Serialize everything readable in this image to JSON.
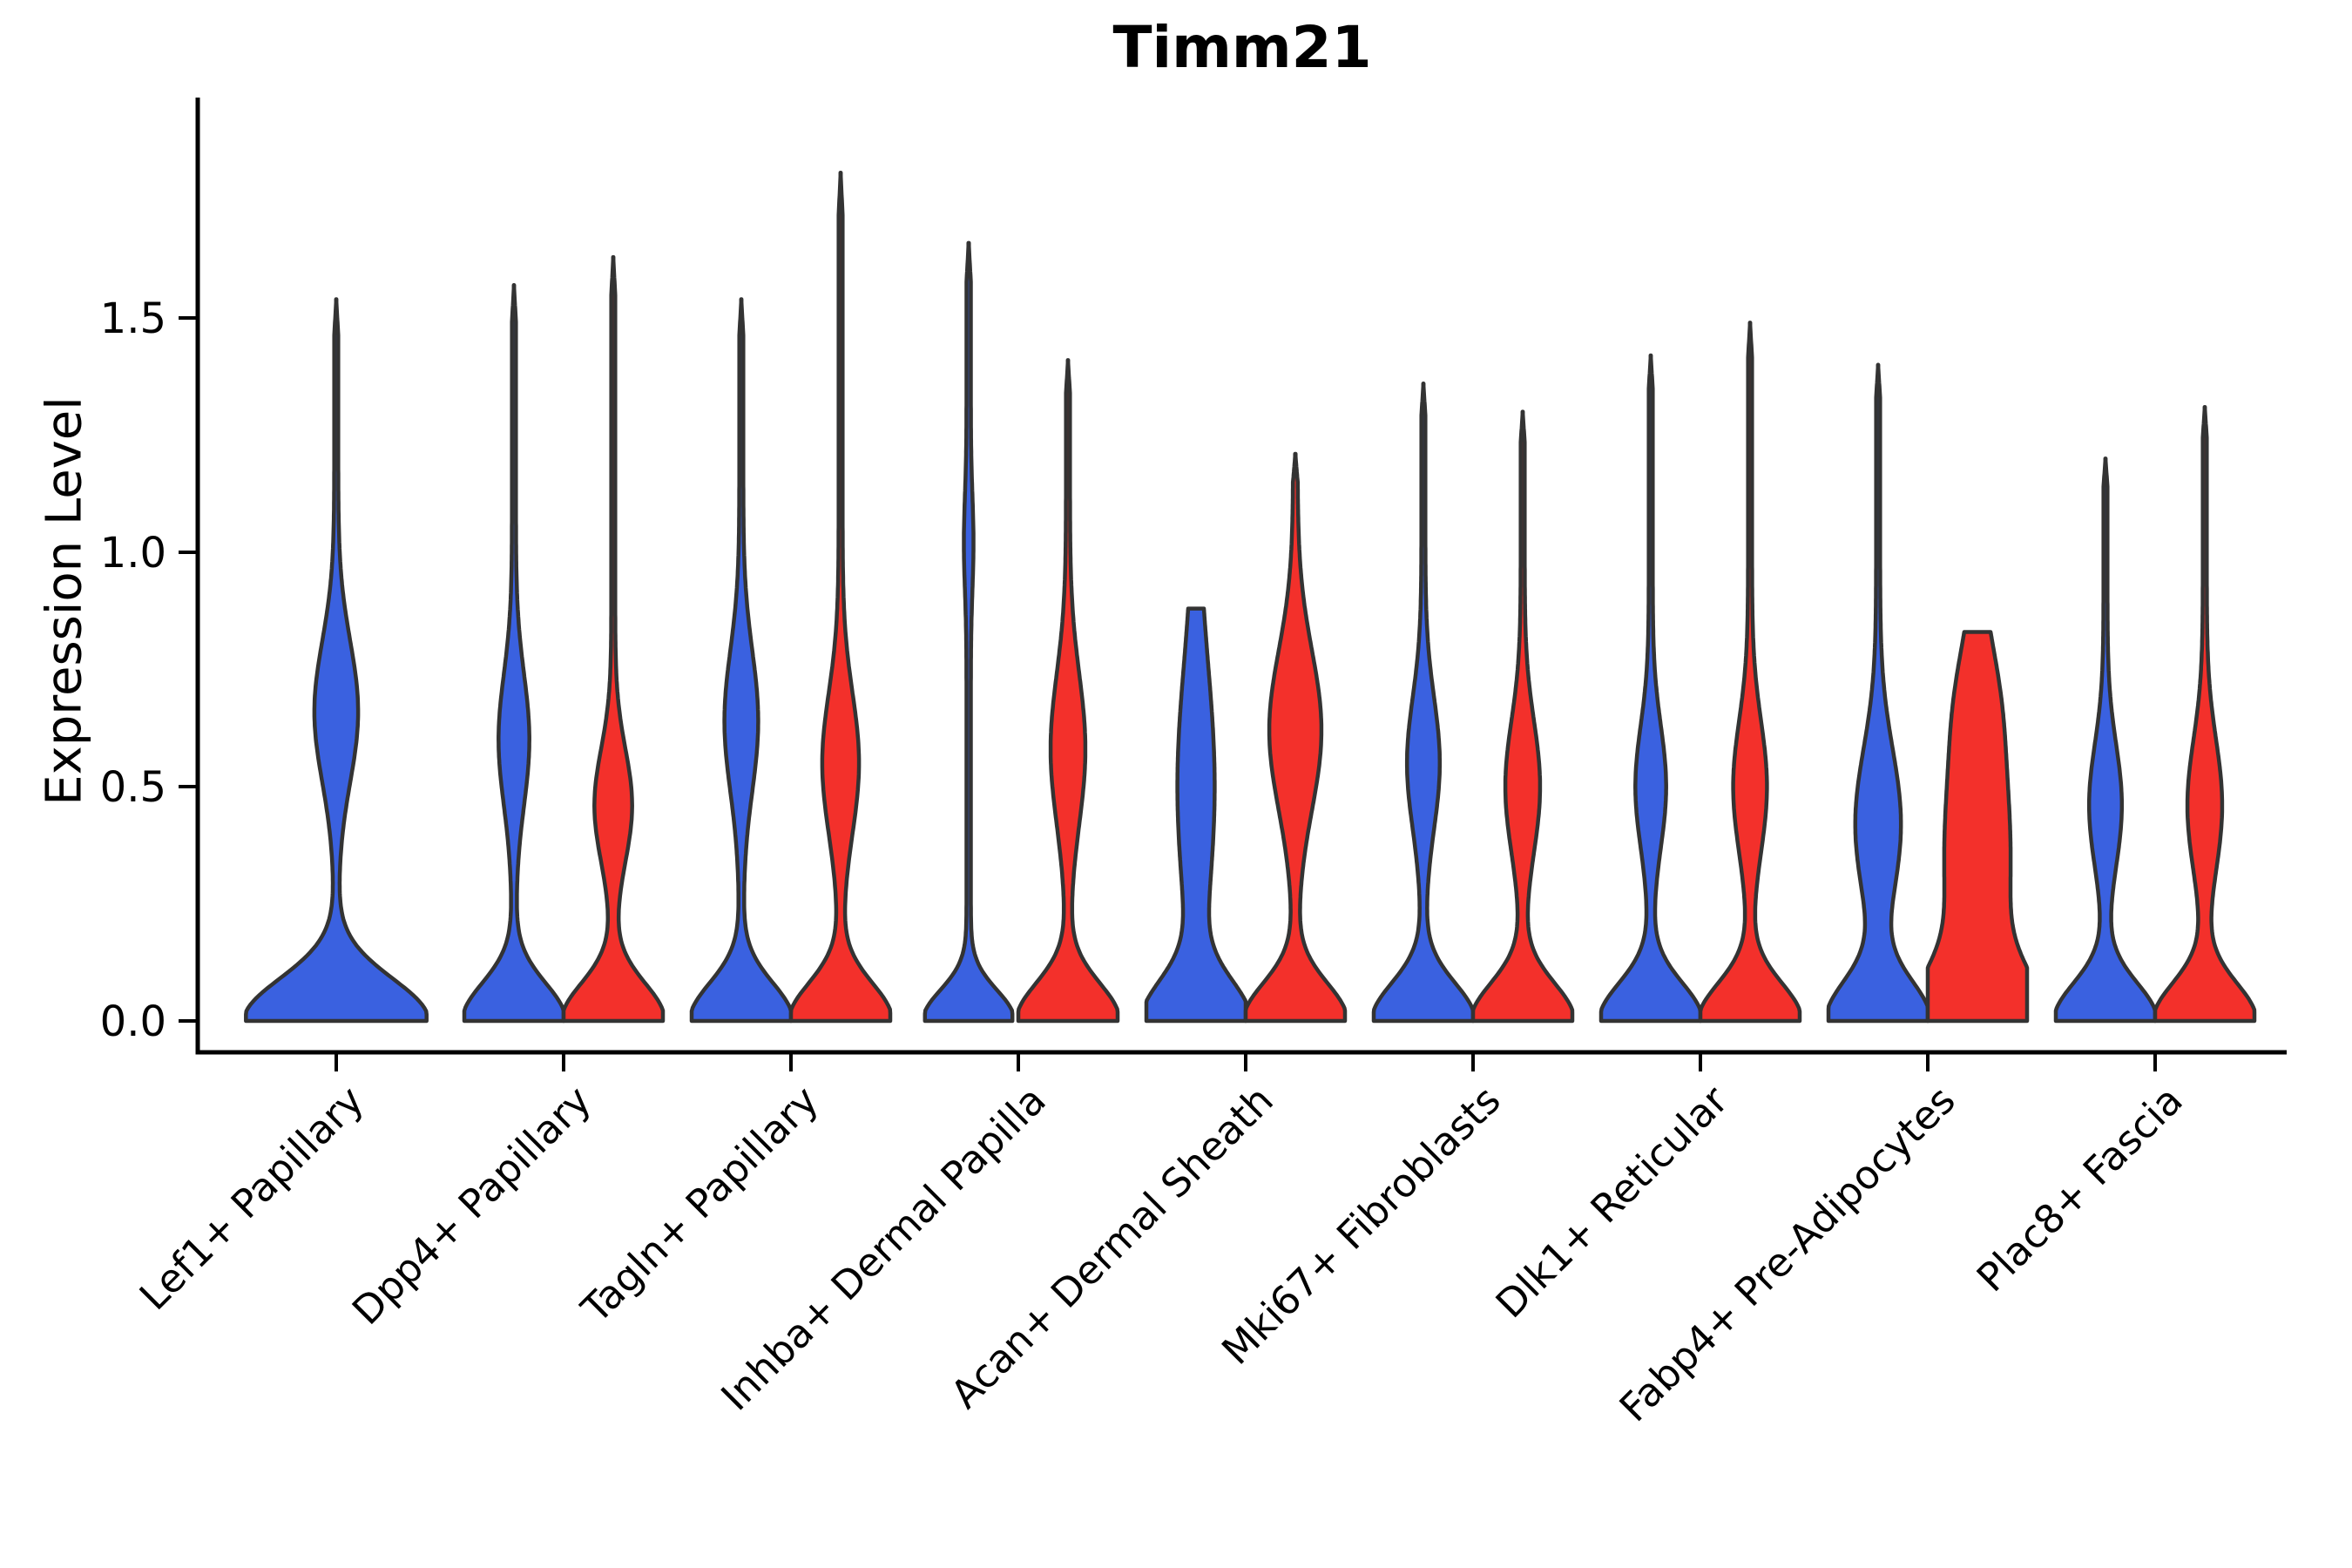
{
  "chart_data": {
    "type": "violin",
    "title": "Timm21",
    "ylabel": "Expression Level",
    "xlabel": "",
    "y_tick_labels": [
      "0.0",
      "0.5",
      "1.0",
      "1.5"
    ],
    "y_tick_values": [
      0.0,
      0.5,
      1.0,
      1.5
    ],
    "ylim": [
      0,
      1.85
    ],
    "grid": false,
    "legend": "none",
    "split_groups": [
      "blue",
      "red"
    ],
    "colors": {
      "blue": "#3A61E0",
      "red": "#F3302B",
      "outline": "#333333"
    },
    "categories": [
      {
        "label": "Lef1+ Papillary",
        "violins": [
          {
            "group": "blue",
            "max_expression": 1.54,
            "rel_width": 1.82,
            "base_sigma": 0.09,
            "bulges": [
              [
                0.66,
                0.15,
                0.22
              ]
            ],
            "stem_w": 0.022,
            "flat_top": false
          }
        ]
      },
      {
        "label": "Dpp4+ Papillary",
        "violins": [
          {
            "group": "blue",
            "max_expression": 1.57,
            "rel_width": 1.0,
            "base_sigma": 0.08,
            "bulges": [
              [
                0.6,
                0.14,
                0.27
              ]
            ],
            "stem_w": 0.04,
            "flat_top": false
          },
          {
            "group": "red",
            "max_expression": 1.63,
            "rel_width": 1.0,
            "base_sigma": 0.08,
            "bulges": [
              [
                0.46,
                0.12,
                0.34
              ]
            ],
            "stem_w": 0.04,
            "flat_top": false
          }
        ]
      },
      {
        "label": "Tagln+ Papillary",
        "violins": [
          {
            "group": "blue",
            "max_expression": 1.54,
            "rel_width": 1.0,
            "base_sigma": 0.08,
            "bulges": [
              [
                0.64,
                0.15,
                0.3
              ]
            ],
            "stem_w": 0.04,
            "flat_top": false
          },
          {
            "group": "red",
            "max_expression": 1.81,
            "rel_width": 1.0,
            "base_sigma": 0.08,
            "bulges": [
              [
                0.55,
                0.15,
                0.33
              ]
            ],
            "stem_w": 0.04,
            "flat_top": false
          }
        ]
      },
      {
        "label": "Inhba+ Dermal Papilla",
        "violins": [
          {
            "group": "blue",
            "max_expression": 1.66,
            "rel_width": 0.88,
            "base_sigma": 0.065,
            "bulges": [
              [
                1.02,
                0.1,
                0.06
              ]
            ],
            "stem_w": 0.05,
            "flat_top": false
          },
          {
            "group": "red",
            "max_expression": 1.41,
            "rel_width": 1.0,
            "base_sigma": 0.08,
            "bulges": [
              [
                0.58,
                0.16,
                0.31
              ]
            ],
            "stem_w": 0.04,
            "flat_top": false
          }
        ]
      },
      {
        "label": "Acan+ Dermal Sheath",
        "violins": [
          {
            "group": "blue",
            "max_expression": 0.88,
            "rel_width": 1.0,
            "base_sigma": 0.085,
            "bulges": [
              [
                0.5,
                0.26,
                0.33
              ]
            ],
            "stem_w": 0.045,
            "flat_top": true
          },
          {
            "group": "red",
            "max_expression": 1.21,
            "rel_width": 1.0,
            "base_sigma": 0.08,
            "bulges": [
              [
                0.62,
                0.17,
                0.48
              ]
            ],
            "stem_w": 0.045,
            "flat_top": false
          }
        ]
      },
      {
        "label": "Mki67+ Fibroblasts",
        "violins": [
          {
            "group": "blue",
            "max_expression": 1.36,
            "rel_width": 1.0,
            "base_sigma": 0.08,
            "bulges": [
              [
                0.55,
                0.14,
                0.29
              ]
            ],
            "stem_w": 0.04,
            "flat_top": false
          },
          {
            "group": "red",
            "max_expression": 1.3,
            "rel_width": 1.0,
            "base_sigma": 0.08,
            "bulges": [
              [
                0.5,
                0.14,
                0.31
              ]
            ],
            "stem_w": 0.04,
            "flat_top": false
          }
        ]
      },
      {
        "label": "Dlk1+ Reticular",
        "violins": [
          {
            "group": "blue",
            "max_expression": 1.42,
            "rel_width": 1.0,
            "base_sigma": 0.08,
            "bulges": [
              [
                0.5,
                0.13,
                0.27
              ]
            ],
            "stem_w": 0.04,
            "flat_top": false
          },
          {
            "group": "red",
            "max_expression": 1.49,
            "rel_width": 1.0,
            "base_sigma": 0.08,
            "bulges": [
              [
                0.5,
                0.14,
                0.3
              ]
            ],
            "stem_w": 0.04,
            "flat_top": false
          }
        ]
      },
      {
        "label": "Fabp4+ Pre-Adipocytes",
        "violins": [
          {
            "group": "blue",
            "max_expression": 1.4,
            "rel_width": 1.0,
            "base_sigma": 0.085,
            "bulges": [
              [
                0.42,
                0.16,
                0.42
              ]
            ],
            "stem_w": 0.04,
            "flat_top": false
          },
          {
            "group": "red",
            "max_expression": 0.83,
            "rel_width": 1.0,
            "base_sigma": 0.1,
            "bulges": [
              [
                0.35,
                0.28,
                0.62
              ],
              [
                0.7,
                0.12,
                0.14
              ]
            ],
            "stem_w": 0.045,
            "flat_top": true
          }
        ]
      },
      {
        "label": "Plac8+ Fascia",
        "violins": [
          {
            "group": "blue",
            "max_expression": 1.2,
            "rel_width": 1.0,
            "base_sigma": 0.08,
            "bulges": [
              [
                0.46,
                0.13,
                0.29
              ]
            ],
            "stem_w": 0.04,
            "flat_top": false
          },
          {
            "group": "red",
            "max_expression": 1.31,
            "rel_width": 1.0,
            "base_sigma": 0.08,
            "bulges": [
              [
                0.46,
                0.14,
                0.31
              ]
            ],
            "stem_w": 0.04,
            "flat_top": false
          }
        ]
      }
    ]
  }
}
